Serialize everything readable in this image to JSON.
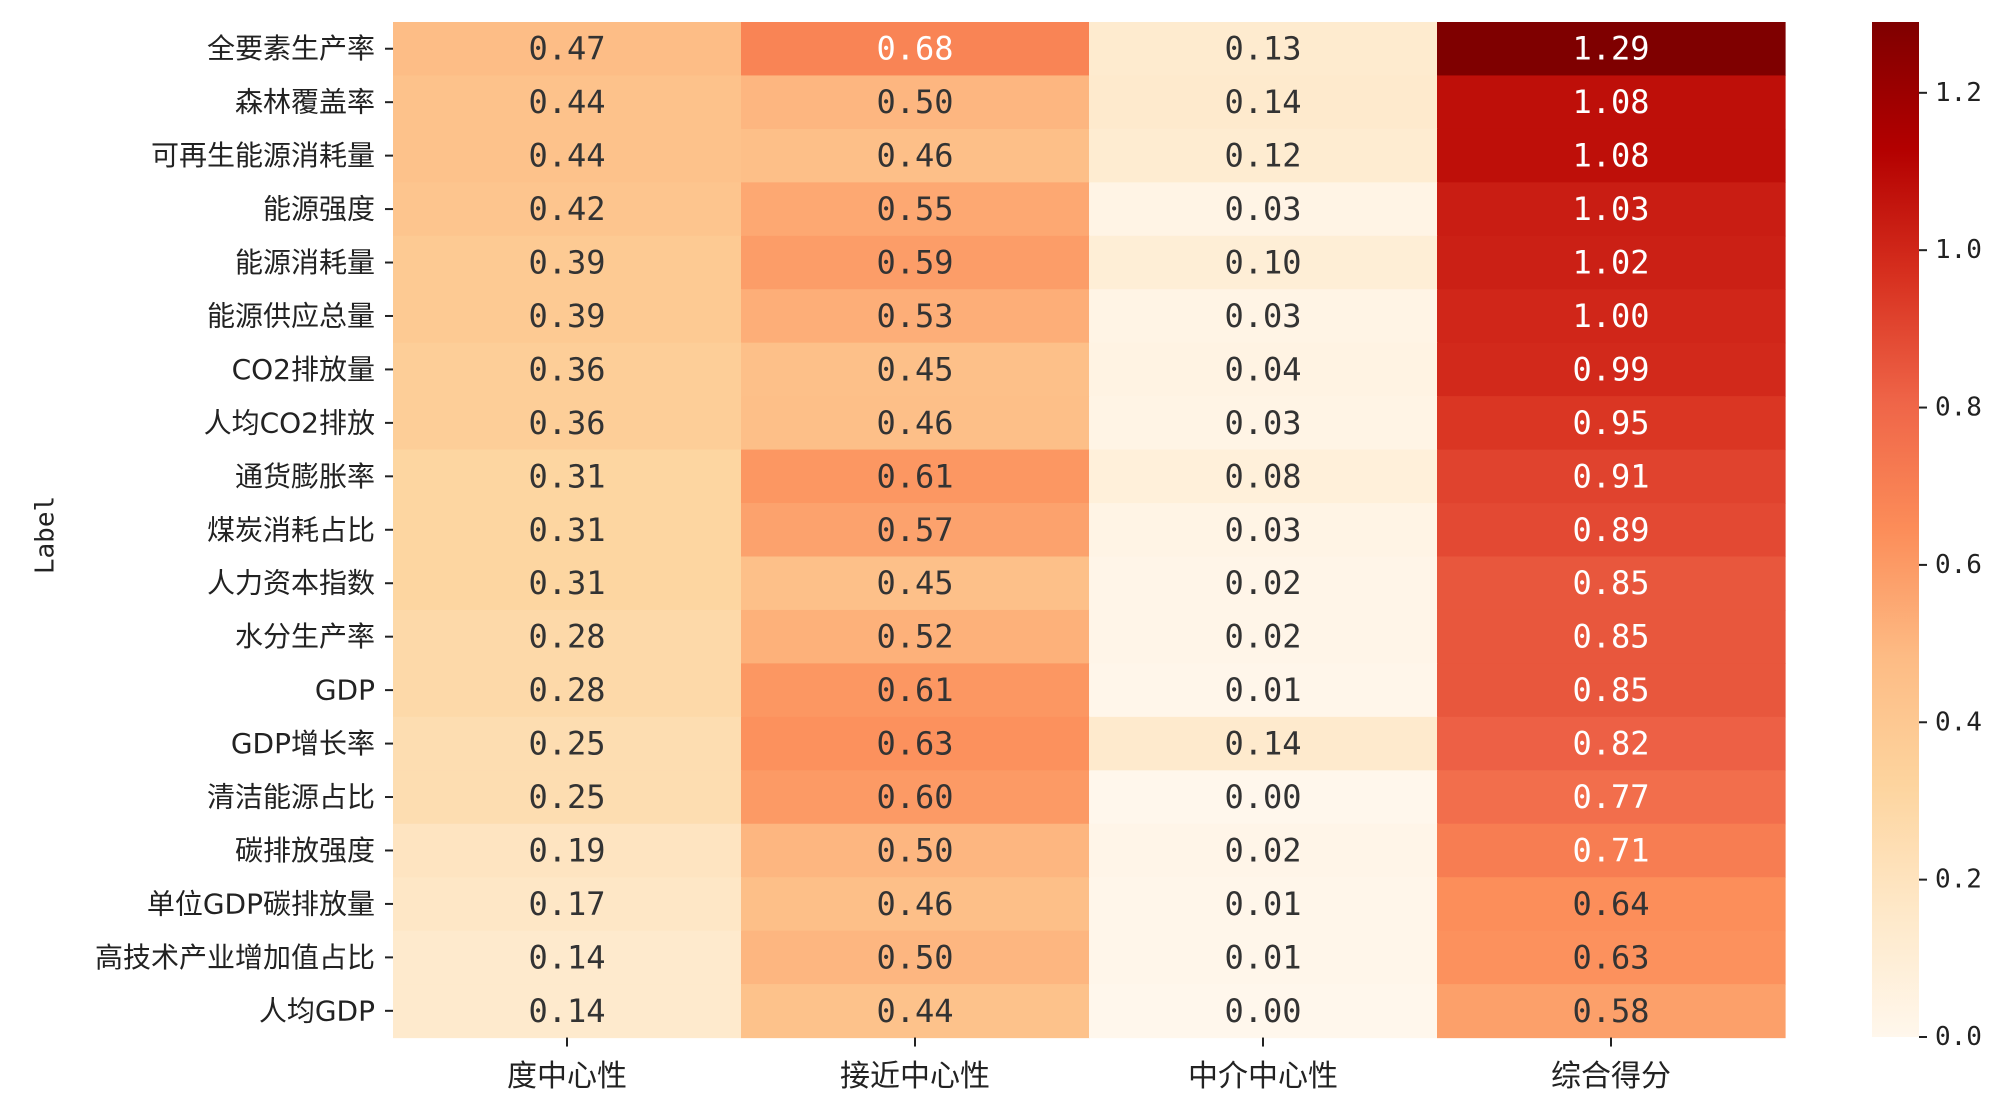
{
  "chart_data": {
    "type": "heatmap",
    "title": "",
    "ylabel": "Label",
    "xlabel": "",
    "columns": [
      "度中心性",
      "接近中心性",
      "中介中心性",
      "综合得分"
    ],
    "rows": [
      "全要素生产率",
      "森林覆盖率",
      "可再生能源消耗量",
      "能源强度",
      "能源消耗量",
      "能源供应总量",
      "CO2排放量",
      "人均CO2排放",
      "通货膨胀率",
      "煤炭消耗占比",
      "人力资本指数",
      "水分生产率",
      "GDP",
      "GDP增长率",
      "清洁能源占比",
      "碳排放强度",
      "单位GDP碳排放量",
      "高技术产业增加值占比",
      "人均GDP"
    ],
    "values": [
      [
        0.47,
        0.68,
        0.13,
        1.29
      ],
      [
        0.44,
        0.5,
        0.14,
        1.08
      ],
      [
        0.44,
        0.46,
        0.12,
        1.08
      ],
      [
        0.42,
        0.55,
        0.03,
        1.03
      ],
      [
        0.39,
        0.59,
        0.1,
        1.02
      ],
      [
        0.39,
        0.53,
        0.03,
        1.0
      ],
      [
        0.36,
        0.45,
        0.04,
        0.99
      ],
      [
        0.36,
        0.46,
        0.03,
        0.95
      ],
      [
        0.31,
        0.61,
        0.08,
        0.91
      ],
      [
        0.31,
        0.57,
        0.03,
        0.89
      ],
      [
        0.31,
        0.45,
        0.02,
        0.85
      ],
      [
        0.28,
        0.52,
        0.02,
        0.85
      ],
      [
        0.28,
        0.61,
        0.01,
        0.85
      ],
      [
        0.25,
        0.63,
        0.14,
        0.82
      ],
      [
        0.25,
        0.6,
        0.0,
        0.77
      ],
      [
        0.19,
        0.5,
        0.02,
        0.71
      ],
      [
        0.17,
        0.46,
        0.01,
        0.64
      ],
      [
        0.14,
        0.5,
        0.01,
        0.63
      ],
      [
        0.14,
        0.44,
        0.0,
        0.58
      ]
    ],
    "value_labels": [
      [
        "0.47",
        "0.68",
        "0.13",
        "1.29"
      ],
      [
        "0.44",
        "0.50",
        "0.14",
        "1.08"
      ],
      [
        "0.44",
        "0.46",
        "0.12",
        "1.08"
      ],
      [
        "0.42",
        "0.55",
        "0.03",
        "1.03"
      ],
      [
        "0.39",
        "0.59",
        "0.10",
        "1.02"
      ],
      [
        "0.39",
        "0.53",
        "0.03",
        "1.00"
      ],
      [
        "0.36",
        "0.45",
        "0.04",
        "0.99"
      ],
      [
        "0.36",
        "0.46",
        "0.03",
        "0.95"
      ],
      [
        "0.31",
        "0.61",
        "0.08",
        "0.91"
      ],
      [
        "0.31",
        "0.57",
        "0.03",
        "0.89"
      ],
      [
        "0.31",
        "0.45",
        "0.02",
        "0.85"
      ],
      [
        "0.28",
        "0.52",
        "0.02",
        "0.85"
      ],
      [
        "0.28",
        "0.61",
        "0.01",
        "0.85"
      ],
      [
        "0.25",
        "0.63",
        "0.14",
        "0.82"
      ],
      [
        "0.25",
        "0.60",
        "0.00",
        "0.77"
      ],
      [
        "0.19",
        "0.50",
        "0.02",
        "0.71"
      ],
      [
        "0.17",
        "0.46",
        "0.01",
        "0.64"
      ],
      [
        "0.14",
        "0.50",
        "0.01",
        "0.63"
      ],
      [
        "0.14",
        "0.44",
        "0.00",
        "0.58"
      ]
    ],
    "colormap": "OrRd",
    "vmin": 0.0,
    "vmax": 1.29,
    "colorbar": {
      "ticks": [
        0.0,
        0.2,
        0.4,
        0.6,
        0.8,
        1.0,
        1.2
      ],
      "tick_labels": [
        "0.0",
        "0.2",
        "0.4",
        "0.6",
        "0.8",
        "1.0",
        "1.2"
      ]
    },
    "annotation_colors": {
      "dark_text": "#333333",
      "light_text": "#ffffff"
    }
  }
}
